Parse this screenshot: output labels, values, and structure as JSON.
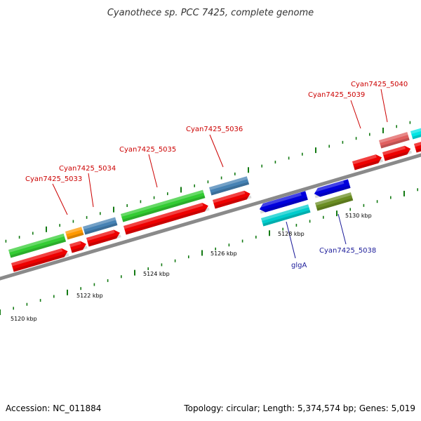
{
  "title": "Cyanothece sp. PCC 7425, complete genome",
  "footer": {
    "accession": "Accession: NC_011884",
    "summary": "Topology: circular; Length: 5,374,574 bp; Genes: 5,019"
  },
  "colors": {
    "backbone": "#8a8a8a",
    "tick": "#137a13",
    "label_forward": "#cc0000",
    "label_reverse": "#1a1a99"
  },
  "scale_labels": [
    "5120 kbp",
    "5122 kbp",
    "5124 kbp",
    "5126 kbp",
    "5128 kbp",
    "5130 kbp"
  ],
  "gene_labels": [
    {
      "text": "Cyan7425_5033",
      "strand": "forward"
    },
    {
      "text": "Cyan7425_5034",
      "strand": "forward"
    },
    {
      "text": "Cyan7425_5035",
      "strand": "forward"
    },
    {
      "text": "Cyan7425_5036",
      "strand": "forward"
    },
    {
      "text": "Cyan7425_5039",
      "strand": "forward"
    },
    {
      "text": "Cyan7425_5040",
      "strand": "forward"
    },
    {
      "text": "glgA",
      "strand": "reverse"
    },
    {
      "text": "Cyan7425_5038",
      "strand": "reverse"
    }
  ],
  "features": [
    {
      "name": "cog-5033",
      "color": "#33cc33"
    },
    {
      "name": "cog-5034",
      "color": "#ff9900"
    },
    {
      "name": "cog-5035",
      "color": "#4682b4"
    },
    {
      "name": "cog-5036",
      "color": "#33cc33"
    },
    {
      "name": "cog-5037",
      "color": "#4682b4"
    },
    {
      "name": "cog-glgA",
      "color": "#00cccc"
    },
    {
      "name": "cog-5038",
      "color": "#6b8e23"
    },
    {
      "name": "cog-5039",
      "color": "#e06060"
    },
    {
      "name": "cog-5040",
      "color": "#00e5e5"
    },
    {
      "name": "cds-forward",
      "color": "#ee0000"
    },
    {
      "name": "cds-reverse",
      "color": "#0000dd"
    }
  ]
}
